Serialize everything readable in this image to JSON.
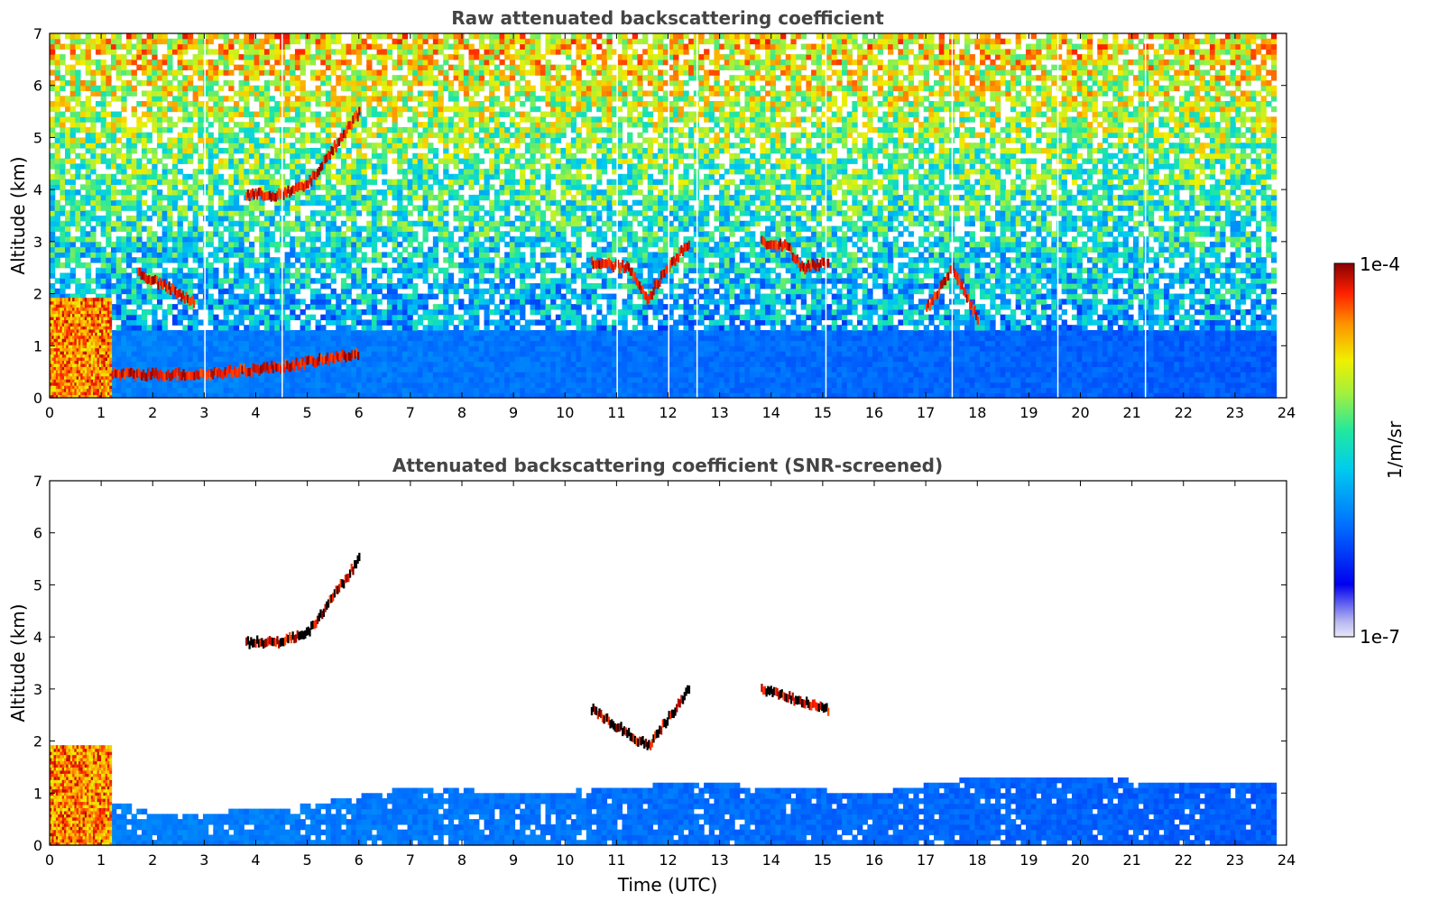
{
  "chart_data": [
    {
      "type": "heatmap",
      "title": "Raw attenuated backscattering coefficient",
      "xlabel": "",
      "ylabel": "Altitude (km)",
      "xlim": [
        0,
        24
      ],
      "ylim": [
        0,
        7
      ],
      "xticks": [
        "0",
        "1",
        "2",
        "3",
        "4",
        "5",
        "6",
        "7",
        "8",
        "9",
        "10",
        "11",
        "12",
        "13",
        "14",
        "15",
        "16",
        "17",
        "18",
        "19",
        "20",
        "21",
        "22",
        "23",
        "24"
      ],
      "yticks": [
        "0",
        "1",
        "2",
        "3",
        "4",
        "5",
        "6",
        "7"
      ],
      "data_end_time": 23.8,
      "grid": false,
      "gaps_at": [
        3.0,
        4.5,
        11.0,
        12.0,
        12.55,
        15.05,
        17.5,
        19.55,
        21.25
      ],
      "features": [
        {
          "name": "near-surface aerosol layer",
          "x_range": [
            0,
            23.8
          ],
          "altitude_km": [
            0,
            1.3
          ],
          "level": "medium"
        },
        {
          "name": "dense low cloud",
          "x_range": [
            0,
            1.2
          ],
          "altitude_km": [
            0,
            1.9
          ],
          "level": "high"
        },
        {
          "name": "rising layer top",
          "points": [
            [
              1.2,
              0.45
            ],
            [
              3.0,
              0.45
            ],
            [
              4.5,
              0.6
            ],
            [
              6.0,
              0.85
            ]
          ],
          "level": "high"
        },
        {
          "name": "elevated layer 1",
          "points": [
            [
              3.8,
              3.9
            ],
            [
              4.5,
              3.9
            ],
            [
              5.0,
              4.1
            ],
            [
              5.5,
              4.8
            ],
            [
              6.0,
              5.5
            ]
          ],
          "level": "high"
        },
        {
          "name": "cloud 1.7-2.6 km",
          "points": [
            [
              1.7,
              2.4
            ],
            [
              2.3,
              2.1
            ],
            [
              2.8,
              1.8
            ]
          ],
          "level": "high"
        },
        {
          "name": "cloud 2.5 km",
          "points": [
            [
              10.5,
              2.6
            ],
            [
              11.2,
              2.5
            ],
            [
              11.6,
              1.9
            ],
            [
              11.9,
              2.4
            ],
            [
              12.4,
              3.0
            ]
          ],
          "level": "high"
        },
        {
          "name": "cloud 3 km",
          "points": [
            [
              13.8,
              3.0
            ],
            [
              14.3,
              2.9
            ],
            [
              14.6,
              2.5
            ],
            [
              15.1,
              2.6
            ]
          ],
          "level": "high"
        },
        {
          "name": "cloud 1.5-2 km",
          "points": [
            [
              17.0,
              1.7
            ],
            [
              17.5,
              2.5
            ],
            [
              18.0,
              1.5
            ]
          ],
          "level": "high"
        },
        {
          "name": "noise region",
          "x_range": [
            0,
            23.8
          ],
          "altitude_km": [
            1.3,
            7
          ],
          "level": "noisy"
        }
      ]
    },
    {
      "type": "heatmap",
      "title": "Attenuated backscattering coefficient (SNR-screened)",
      "xlabel": "Time (UTC)",
      "ylabel": "Altitude (km)",
      "xlim": [
        0,
        24
      ],
      "ylim": [
        0,
        7
      ],
      "xticks": [
        "0",
        "1",
        "2",
        "3",
        "4",
        "5",
        "6",
        "7",
        "8",
        "9",
        "10",
        "11",
        "12",
        "13",
        "14",
        "15",
        "16",
        "17",
        "18",
        "19",
        "20",
        "21",
        "22",
        "23",
        "24"
      ],
      "yticks": [
        "0",
        "1",
        "2",
        "3",
        "4",
        "5",
        "6",
        "7"
      ],
      "data_end_time": 23.8,
      "grid": false,
      "screened_top_km": [
        [
          0,
          1.3
        ],
        [
          2.0,
          0.6
        ],
        [
          4.5,
          0.7
        ],
        [
          7.0,
          1.1
        ],
        [
          9.5,
          1.0
        ],
        [
          12.5,
          1.2
        ],
        [
          16.0,
          1.0
        ],
        [
          18.0,
          1.3
        ],
        [
          23.8,
          1.2
        ]
      ],
      "features": [
        {
          "name": "dense low cloud",
          "x_range": [
            0,
            1.2
          ],
          "altitude_km": [
            0,
            1.9
          ],
          "level": "high"
        },
        {
          "name": "elevated layer 1",
          "points": [
            [
              3.8,
              3.9
            ],
            [
              4.5,
              3.9
            ],
            [
              5.0,
              4.1
            ],
            [
              5.5,
              4.8
            ],
            [
              6.0,
              5.5
            ]
          ],
          "level": "high"
        },
        {
          "name": "cloud 2.5 km",
          "points": [
            [
              10.5,
              2.6
            ],
            [
              11.6,
              1.9
            ],
            [
              12.4,
              3.0
            ]
          ],
          "level": "high"
        },
        {
          "name": "cloud 3 km",
          "points": [
            [
              13.8,
              3.0
            ],
            [
              15.1,
              2.6
            ]
          ],
          "level": "high"
        }
      ]
    }
  ],
  "colorbar": {
    "max_label": "1e-4",
    "min_label": "1e-7",
    "unit_label": "1/m/sr",
    "scale": "log",
    "colormap": "jet"
  }
}
